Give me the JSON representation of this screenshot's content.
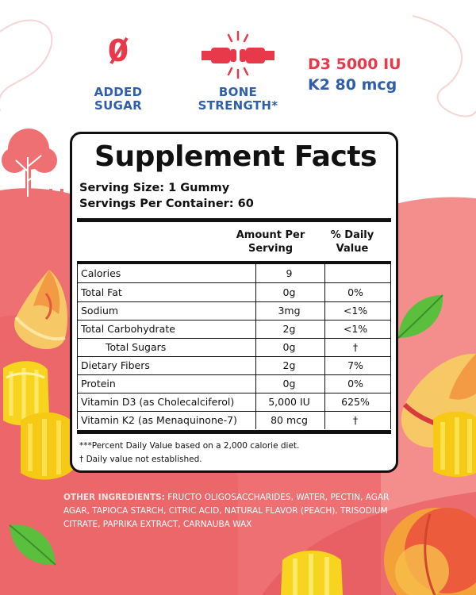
{
  "badges": {
    "sugar": {
      "symbol": "0",
      "line1": "ADDED",
      "line2": "SUGAR"
    },
    "bone": {
      "line1": "BONE",
      "line2": "STRENGTH*"
    }
  },
  "dose": {
    "d3": "D3 5000 IU",
    "k2": "K2 80 mcg"
  },
  "panel": {
    "title": "Supplement Facts",
    "serving_size": "Serving Size: 1 Gummy",
    "servings_per_container": "Servings Per Container: 60",
    "col_amount_1": "Amount Per",
    "col_amount_2": "Serving",
    "col_dv_1": "% Daily",
    "col_dv_2": "Value",
    "rows": [
      {
        "name": "Calories",
        "amount": "9",
        "dv": ""
      },
      {
        "name": "Total Fat",
        "amount": "0g",
        "dv": "0%"
      },
      {
        "name": "Sodium",
        "amount": "3mg",
        "dv": "<1%"
      },
      {
        "name": "Total Carbohydrate",
        "amount": "2g",
        "dv": "<1%"
      },
      {
        "name": "Total Sugars",
        "amount": "0g",
        "dv": "†"
      },
      {
        "name": "Dietary Fibers",
        "amount": "2g",
        "dv": "7%"
      },
      {
        "name": "Protein",
        "amount": "0g",
        "dv": "0%"
      },
      {
        "name": "Vitamin D3 (as Cholecalciferol)",
        "amount": "5,000 IU",
        "dv": "625%"
      },
      {
        "name": "Vitamin K2 (as Menaquinone-7)",
        "amount": "80 mcg",
        "dv": "†"
      }
    ],
    "footnote_1": "***Percent Daily Value based on a 2,000 calorie diet.",
    "footnote_2": "† Daily value not established."
  },
  "ingredients": {
    "label": "OTHER INGREDIENTS:",
    "text": "FRUCTO OLIGOSACCHARIDES, WATER, PECTIN, AGAR AGAR, TAPIOCA STARCH, CITRIC ACID, NATURAL FLAVOR (PEACH), TRISODIUM CITRATE, PAPRIKA EXTRACT, CARNAUBA WAX"
  },
  "colors": {
    "coral": "#ec6669",
    "red": "#e8394b",
    "blue": "#2f5fa8",
    "yellow": "#f7d51f",
    "leaf": "#4fae3a"
  }
}
